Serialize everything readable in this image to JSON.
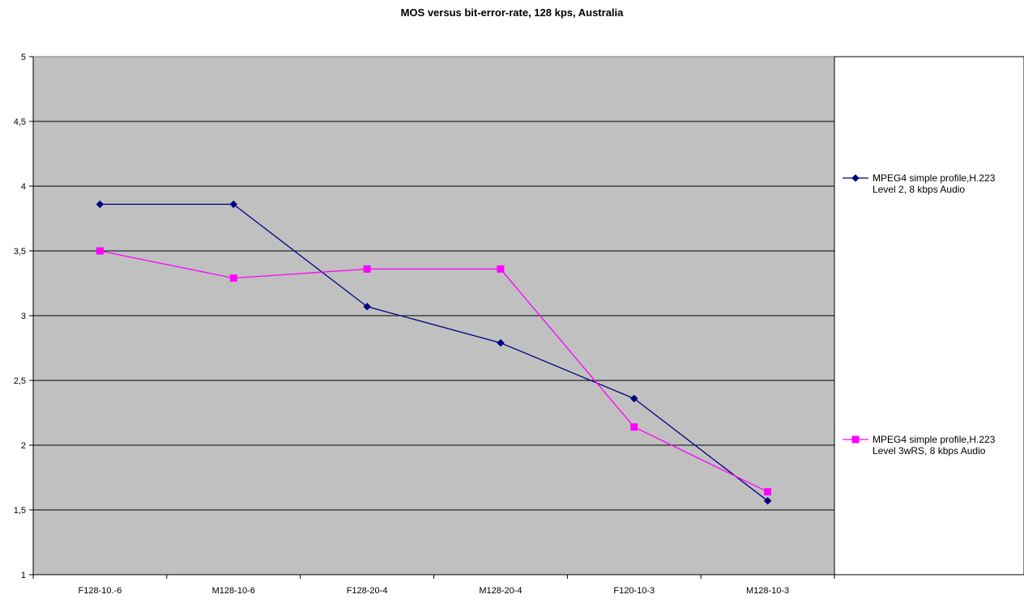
{
  "chart_data": {
    "type": "line",
    "title": "MOS versus bit-error-rate, 128 kps, Australia",
    "xlabel": "",
    "ylabel": "",
    "categories": [
      "F128-10.-6",
      "M128-10-6",
      "F128-20-4",
      "M128-20-4",
      "F120-10-3",
      "M128-10-3"
    ],
    "ylim": [
      1,
      5
    ],
    "y_ticks": [
      "1",
      "1,5",
      "2",
      "2,5",
      "3",
      "3,5",
      "4",
      "4,5",
      "5"
    ],
    "grid": "horizontal",
    "legend_position": "right",
    "plot_background": "#c0c0c0",
    "series": [
      {
        "name_lines": [
          "MPEG4 simple profile,H.223",
          "Level 2, 8 kbps Audio"
        ],
        "color": "#000080",
        "marker": "diamond",
        "values": [
          3.86,
          3.86,
          3.07,
          2.79,
          2.36,
          1.57
        ]
      },
      {
        "name_lines": [
          "MPEG4 simple profile,H.223",
          "Level 3wRS, 8 kbps Audio"
        ],
        "color": "#ff00ff",
        "marker": "square",
        "values": [
          3.5,
          3.29,
          3.36,
          3.36,
          2.14,
          1.64
        ]
      }
    ]
  }
}
